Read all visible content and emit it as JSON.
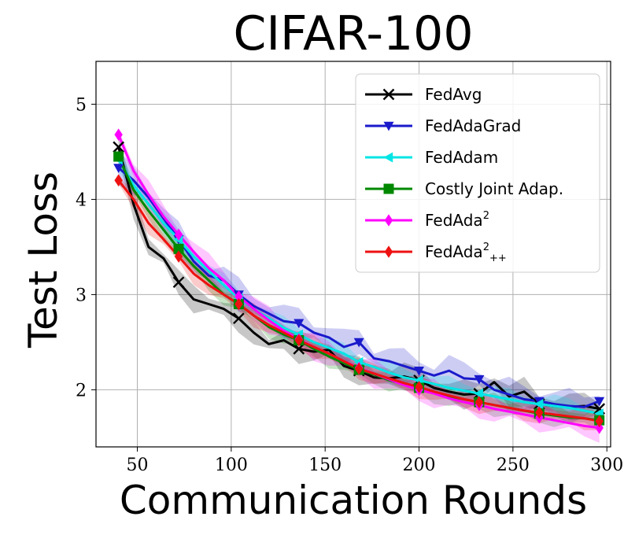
{
  "chart_data": {
    "type": "line",
    "title": "CIFAR-100",
    "xlabel": "Communication Rounds",
    "ylabel": "Test Loss",
    "xlim": [
      28,
      302
    ],
    "ylim": [
      1.4,
      5.45
    ],
    "xticks": [
      50,
      100,
      150,
      200,
      250,
      300
    ],
    "yticks": [
      2,
      3,
      4,
      5
    ],
    "grid": true,
    "legend_position": "top-right",
    "x": [
      40,
      48,
      56,
      64,
      72,
      80,
      88,
      96,
      104,
      112,
      120,
      128,
      136,
      144,
      152,
      160,
      168,
      176,
      184,
      192,
      200,
      208,
      216,
      224,
      232,
      240,
      248,
      256,
      264,
      272,
      280,
      288,
      296
    ],
    "series": [
      {
        "name": "FedAvg",
        "color": "#000000",
        "marker": "x",
        "markers_at": [
          40,
          72,
          104,
          136,
          168,
          200,
          232,
          264,
          296
        ],
        "values": [
          4.55,
          3.95,
          3.5,
          3.38,
          3.13,
          2.95,
          2.9,
          2.85,
          2.75,
          2.6,
          2.48,
          2.52,
          2.43,
          2.4,
          2.42,
          2.25,
          2.2,
          2.13,
          2.12,
          2.14,
          2.1,
          2.02,
          1.98,
          1.95,
          1.96,
          2.08,
          1.93,
          1.98,
          1.85,
          1.83,
          1.82,
          1.83,
          1.8
        ],
        "band": 0.1
      },
      {
        "name": "FedAdaGrad",
        "color": "#1a1acc",
        "marker": "triangle-down",
        "markers_at": [
          40,
          72,
          104,
          136,
          168,
          200,
          232,
          264,
          296
        ],
        "values": [
          4.33,
          4.2,
          4.02,
          3.8,
          3.58,
          3.35,
          3.2,
          3.15,
          3.0,
          2.88,
          2.8,
          2.72,
          2.7,
          2.6,
          2.55,
          2.45,
          2.5,
          2.33,
          2.3,
          2.25,
          2.2,
          2.15,
          2.2,
          2.12,
          2.11,
          2.0,
          1.95,
          1.9,
          1.88,
          1.85,
          1.83,
          1.82,
          1.88
        ],
        "band": 0.12
      },
      {
        "name": "FedAdam",
        "color": "#00e5e5",
        "marker": "triangle-left",
        "markers_at": [
          40,
          72,
          104,
          136,
          168,
          200,
          232,
          264,
          296
        ],
        "values": [
          4.42,
          4.15,
          3.95,
          3.75,
          3.58,
          3.4,
          3.25,
          3.1,
          2.96,
          2.85,
          2.75,
          2.65,
          2.58,
          2.5,
          2.44,
          2.38,
          2.29,
          2.24,
          2.18,
          2.13,
          2.1,
          2.06,
          2.02,
          1.99,
          1.96,
          1.93,
          1.9,
          1.87,
          1.85,
          1.83,
          1.81,
          1.78,
          1.75
        ],
        "band": 0.08
      },
      {
        "name": "Costly Joint Adap.",
        "color": "#008800",
        "marker": "square",
        "markers_at": [
          40,
          72,
          104,
          136,
          168,
          200,
          232,
          264,
          296
        ],
        "values": [
          4.45,
          4.1,
          3.88,
          3.68,
          3.48,
          3.3,
          3.15,
          3.0,
          2.9,
          2.78,
          2.66,
          2.58,
          2.52,
          2.43,
          2.35,
          2.28,
          2.21,
          2.16,
          2.1,
          2.06,
          2.02,
          1.97,
          1.93,
          1.9,
          1.87,
          1.84,
          1.81,
          1.78,
          1.75,
          1.73,
          1.71,
          1.7,
          1.68
        ],
        "band": 0.08
      },
      {
        "name": "FedAda",
        "sup": "2",
        "color": "#ff00ff",
        "marker": "diamond",
        "markers_at": [
          40,
          72,
          104,
          136,
          168,
          200,
          232,
          264,
          296
        ],
        "values": [
          4.68,
          4.3,
          4.05,
          3.82,
          3.63,
          3.45,
          3.28,
          3.15,
          2.98,
          2.85,
          2.73,
          2.62,
          2.53,
          2.45,
          2.38,
          2.3,
          2.23,
          2.17,
          2.11,
          2.05,
          2.0,
          1.96,
          1.91,
          1.87,
          1.84,
          1.8,
          1.77,
          1.74,
          1.71,
          1.68,
          1.65,
          1.62,
          1.6
        ],
        "band": 0.1
      },
      {
        "name": "FedAda",
        "sup": "2",
        "sub": "++",
        "color": "#ee1111",
        "marker": "diamond",
        "markers_at": [
          40,
          72,
          104,
          136,
          168,
          200,
          232,
          264,
          296
        ],
        "values": [
          4.2,
          4.0,
          3.75,
          3.58,
          3.4,
          3.22,
          3.1,
          3.0,
          2.9,
          2.78,
          2.68,
          2.6,
          2.52,
          2.45,
          2.38,
          2.3,
          2.22,
          2.17,
          2.12,
          2.07,
          2.03,
          1.98,
          1.94,
          1.9,
          1.87,
          1.84,
          1.81,
          1.78,
          1.76,
          1.74,
          1.72,
          1.7,
          1.67
        ],
        "band": 0.08
      }
    ]
  }
}
